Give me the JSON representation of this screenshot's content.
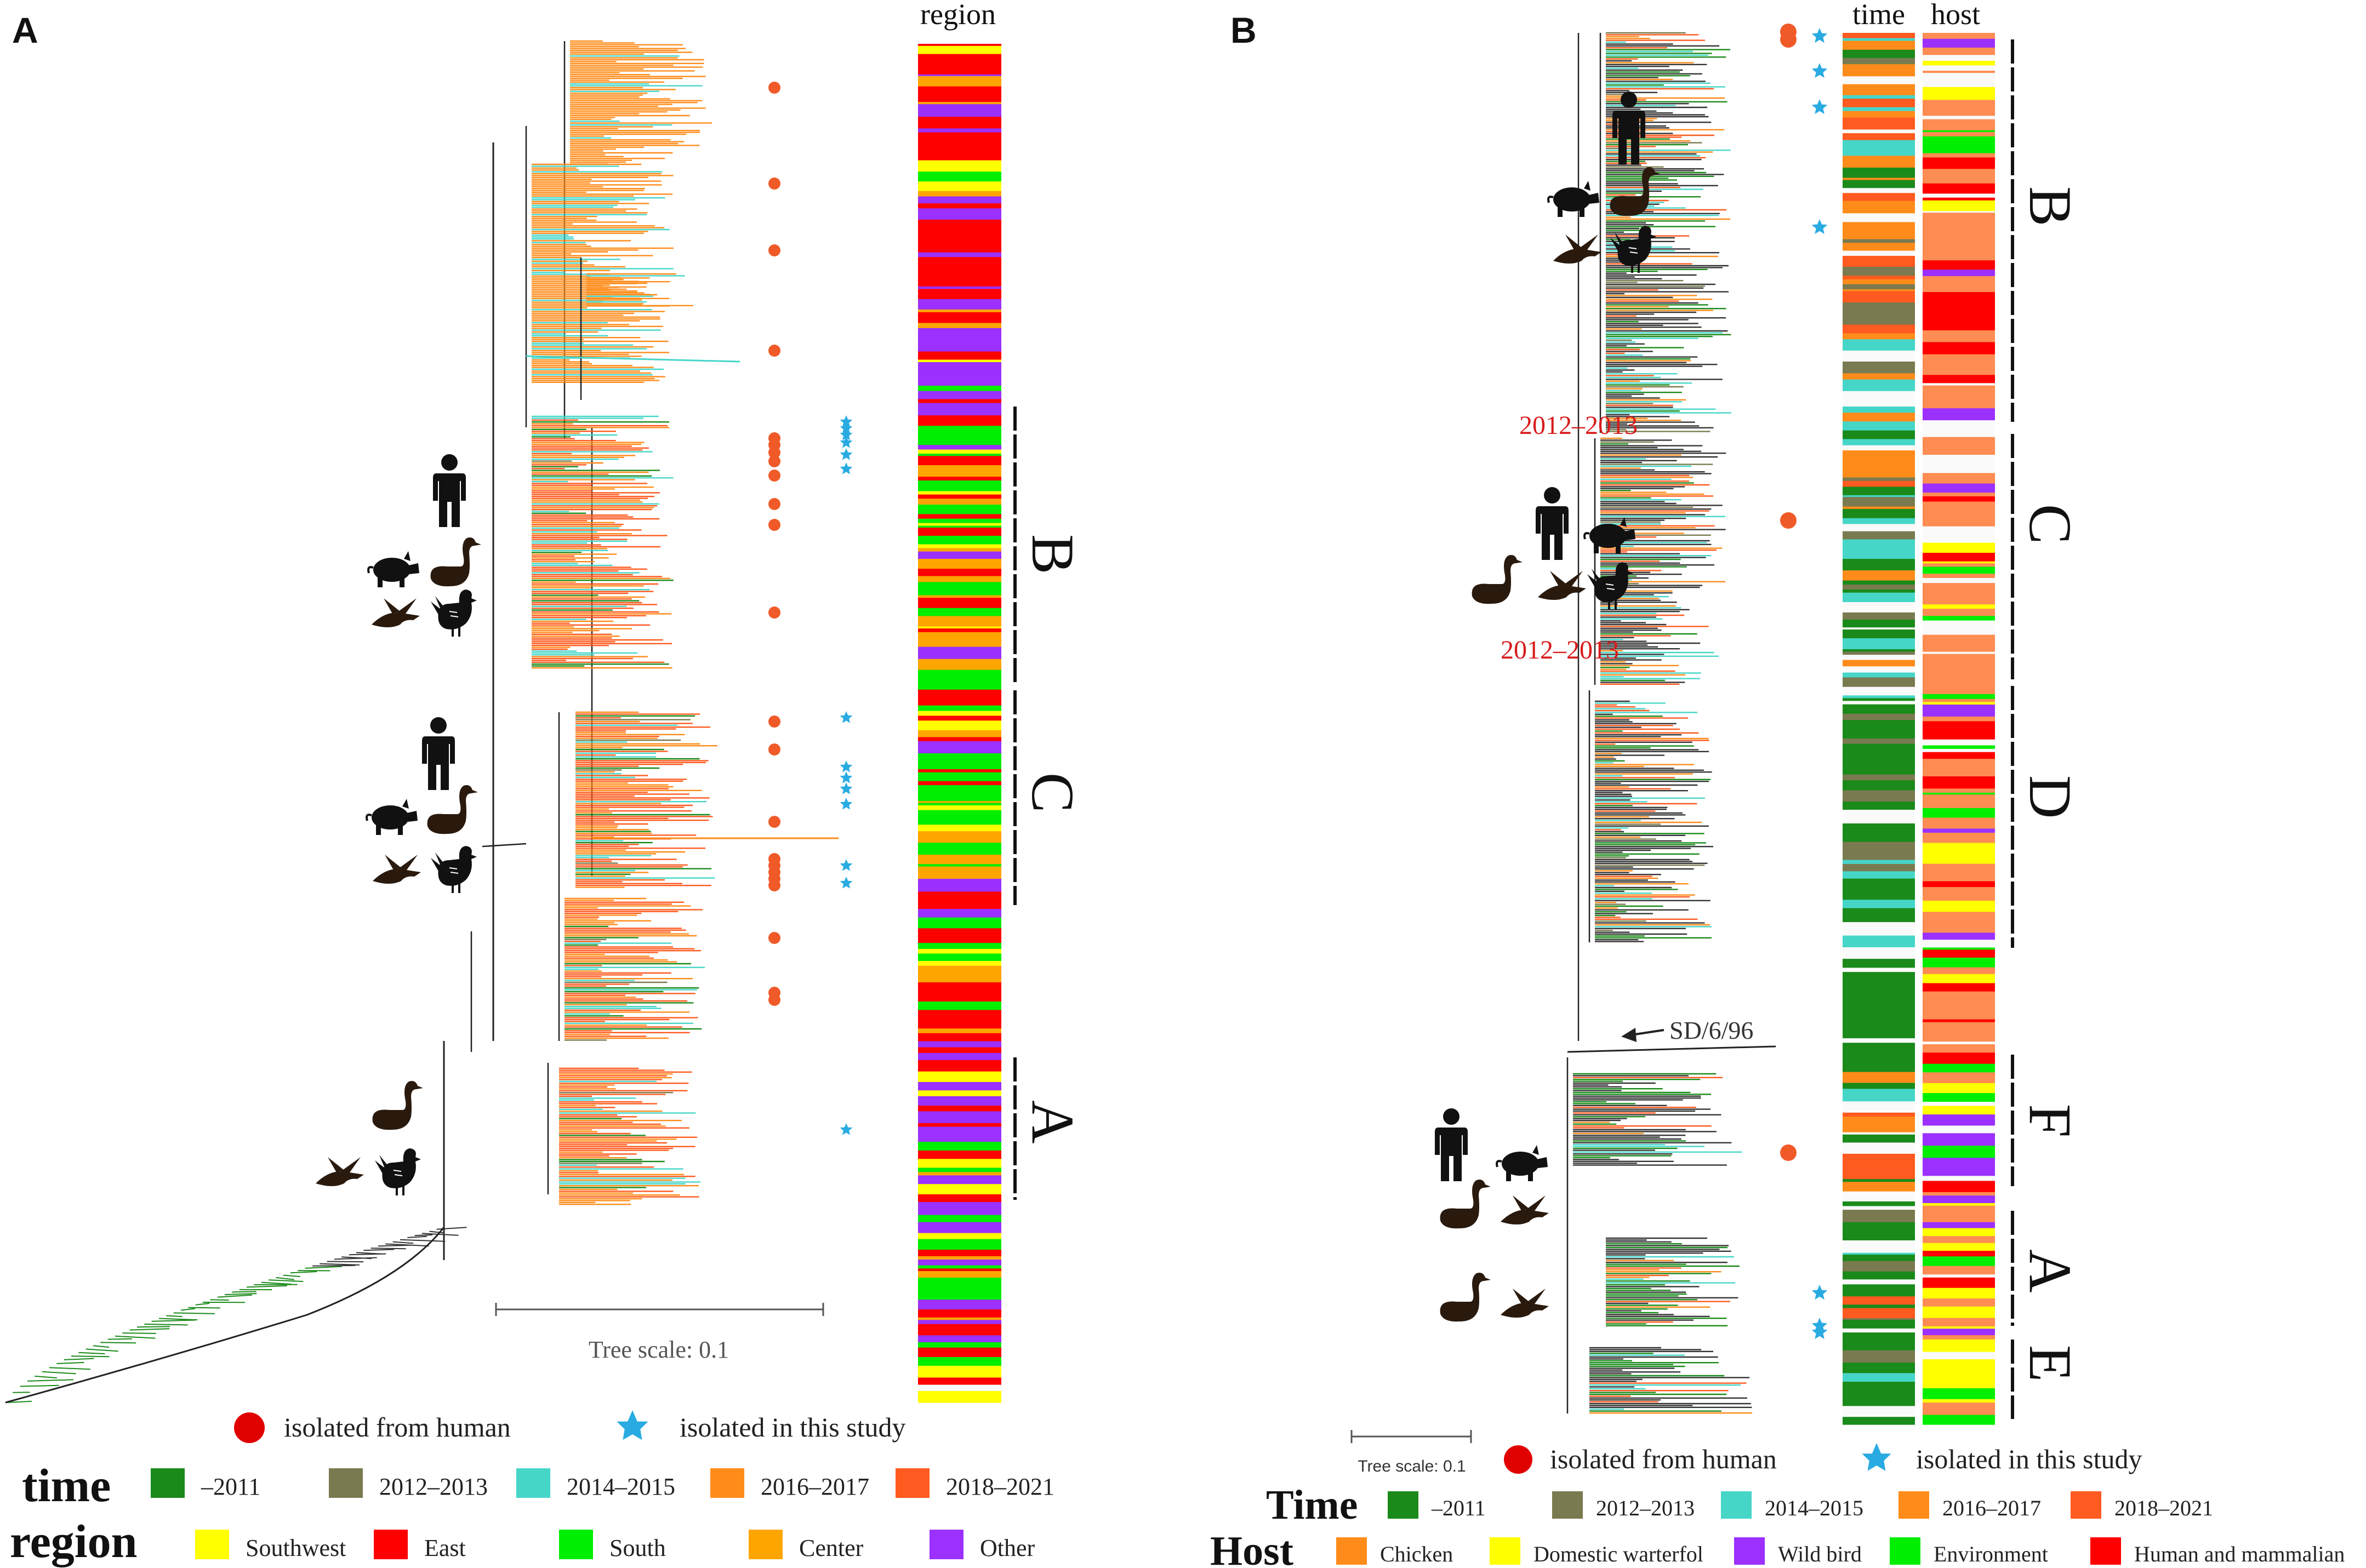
{
  "panels": {
    "a": {
      "letter": "A",
      "column_label": "region",
      "scale_label": "Tree scale: 0.1",
      "clades": [
        "B",
        "C",
        "A"
      ]
    },
    "b": {
      "letter": "B",
      "column_labels": [
        "time",
        "host"
      ],
      "scale_label": "Tree scale: 0.1",
      "clades": [
        "B",
        "C",
        "D",
        "F",
        "A",
        "E"
      ],
      "annotations": [
        "2012–2013",
        "2012–2013",
        "SD/6/96"
      ]
    }
  },
  "legend": {
    "symbols": [
      "isolated from human",
      "isolated in this study"
    ],
    "time_title": "time",
    "region_title": "region",
    "time_title_b": "Time",
    "host_title": "Host",
    "time_items": [
      "–2011",
      "2012–2013",
      "2014–2015",
      "2016–2017",
      "2018–2021"
    ],
    "region_items": [
      "Southwest",
      "East",
      "South",
      "Center",
      "Other"
    ],
    "host_items": [
      "Chicken",
      "Domestic warterfol",
      "Wild bird",
      "Environment",
      "Human and mammalian"
    ]
  },
  "colors": {
    "time": [
      "#1a8a1a",
      "#7a7a50",
      "#46d6c8",
      "#ff8c1a",
      "#ff5a1f"
    ],
    "region": [
      "#ffff00",
      "#ff0000",
      "#00ee00",
      "#ffa500",
      "#9b30ff"
    ],
    "host": [
      "#ff8c1a",
      "#ffff00",
      "#9b30ff",
      "#00ee00",
      "#ff0000"
    ],
    "human_marker": "#f05a28",
    "study_marker": "#29abe2",
    "year_annotation": "#d81b1b"
  },
  "icons": [
    "human-icon",
    "pig-icon",
    "swan-icon",
    "duck-icon",
    "chicken-icon"
  ]
}
